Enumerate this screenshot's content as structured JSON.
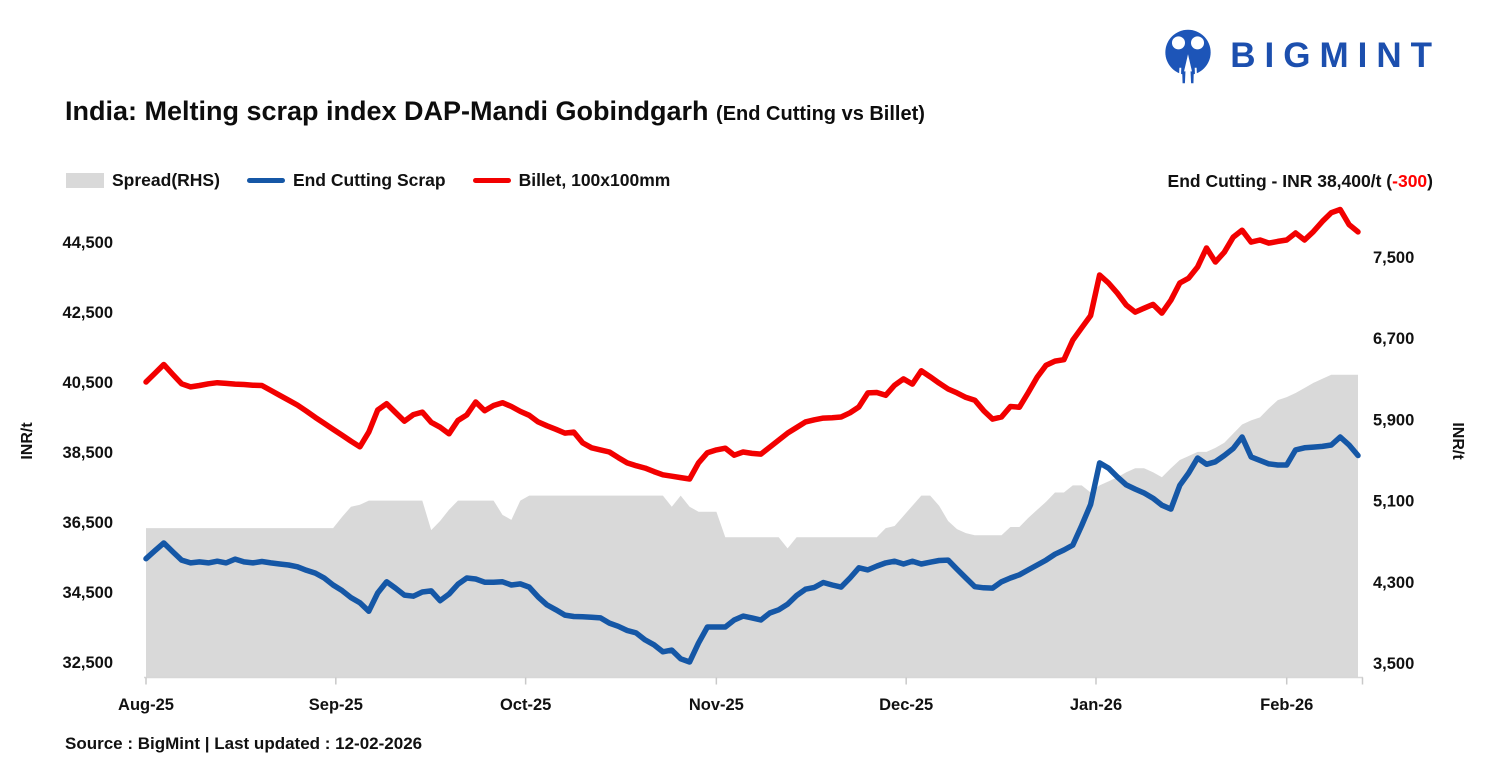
{
  "logo": {
    "text": "BIGMINT",
    "color": "#1c4fae"
  },
  "title": {
    "main": "India: Melting scrap index DAP-Mandi Gobindgarh",
    "sub": "(End Cutting vs Billet)"
  },
  "legend": [
    {
      "label": "Spread(RHS)",
      "type": "area",
      "color": "#d9d9d9"
    },
    {
      "label": "End Cutting Scrap",
      "type": "line",
      "color": "#1557a6"
    },
    {
      "label": "Billet, 100x100mm",
      "type": "line",
      "color": "#f20000"
    }
  ],
  "annotation": {
    "prefix": "End Cutting - INR 38,400/t (",
    "change": "-300",
    "suffix": ")",
    "change_color": "#ff0000"
  },
  "source": "Source : BigMint | Last updated : 12-02-2026",
  "chart_data": {
    "type": "line",
    "title": "India: Melting scrap index DAP-Mandi Gobindgarh (End Cutting vs Billet)",
    "x_tick_labels": [
      "Aug-25",
      "Sep-25",
      "Oct-25",
      "Nov-25",
      "Dec-25",
      "Jan-26",
      "Feb-26"
    ],
    "x_tick_indices": [
      0,
      21.3,
      42.6,
      64,
      85.3,
      106.6,
      128
    ],
    "left_axis": {
      "label": "INR/t",
      "ticks": [
        44500,
        42500,
        40500,
        38500,
        36500,
        34500,
        32500
      ],
      "range": [
        32070,
        45560
      ]
    },
    "right_axis": {
      "label": "INR/t",
      "ticks": [
        7500,
        6700,
        5900,
        5100,
        4300,
        3500
      ],
      "range": [
        3363,
        8012
      ]
    },
    "legend_position": "top-left",
    "grid": false,
    "series": [
      {
        "name": "Spread(RHS)",
        "axis": "right",
        "type": "area",
        "color": "#d9d9d9",
        "values": [
          4830,
          4830,
          4830,
          4830,
          4830,
          4830,
          4830,
          4830,
          4830,
          4830,
          4830,
          4830,
          4830,
          4830,
          4830,
          4830,
          4830,
          4830,
          4830,
          4830,
          4830,
          4830,
          4940,
          5040,
          5060,
          5100,
          5100,
          5100,
          5100,
          5100,
          5100,
          5100,
          4810,
          4900,
          5010,
          5100,
          5100,
          5100,
          5100,
          5100,
          4960,
          4910,
          5100,
          5150,
          5150,
          5150,
          5150,
          5150,
          5150,
          5150,
          5150,
          5150,
          5150,
          5150,
          5150,
          5150,
          5150,
          5150,
          5150,
          5040,
          5150,
          5040,
          4990,
          4990,
          4990,
          4740,
          4740,
          4740,
          4740,
          4740,
          4740,
          4740,
          4630,
          4740,
          4740,
          4740,
          4740,
          4740,
          4740,
          4740,
          4740,
          4740,
          4740,
          4830,
          4850,
          4950,
          5050,
          5150,
          5150,
          5050,
          4900,
          4820,
          4780,
          4760,
          4760,
          4760,
          4760,
          4840,
          4840,
          4930,
          5010,
          5090,
          5180,
          5180,
          5250,
          5250,
          5180,
          5250,
          5290,
          5330,
          5380,
          5420,
          5420,
          5380,
          5330,
          5420,
          5500,
          5540,
          5580,
          5580,
          5620,
          5670,
          5760,
          5850,
          5890,
          5920,
          6010,
          6090,
          6120,
          6160,
          6210,
          6260,
          6300,
          6340,
          6340,
          6340,
          6340
        ]
      },
      {
        "name": "End Cutting Scrap",
        "axis": "left",
        "type": "line",
        "color": "#1557a6",
        "values": [
          35450,
          35680,
          35900,
          35650,
          35410,
          35330,
          35360,
          35330,
          35380,
          35330,
          35440,
          35360,
          35330,
          35370,
          35330,
          35300,
          35270,
          35220,
          35120,
          35040,
          34900,
          34700,
          34540,
          34340,
          34190,
          33950,
          34470,
          34790,
          34610,
          34410,
          34380,
          34500,
          34530,
          34250,
          34440,
          34720,
          34900,
          34870,
          34780,
          34780,
          34790,
          34700,
          34730,
          34640,
          34360,
          34130,
          33990,
          33840,
          33800,
          33790,
          33780,
          33760,
          33610,
          33520,
          33400,
          33330,
          33130,
          32990,
          32790,
          32840,
          32590,
          32500,
          33040,
          33500,
          33500,
          33500,
          33700,
          33810,
          33760,
          33700,
          33900,
          33990,
          34150,
          34400,
          34580,
          34630,
          34770,
          34700,
          34640,
          34900,
          35190,
          35130,
          35240,
          35330,
          35380,
          35300,
          35380,
          35300,
          35350,
          35400,
          35410,
          35150,
          34900,
          34650,
          34620,
          34610,
          34790,
          34900,
          34990,
          35130,
          35270,
          35410,
          35580,
          35700,
          35840,
          36400,
          37000,
          38190,
          38040,
          37790,
          37560,
          37440,
          37330,
          37180,
          36980,
          36870,
          37550,
          37900,
          38330,
          38150,
          38220,
          38400,
          38600,
          38930,
          38360,
          38260,
          38160,
          38130,
          38130,
          38560,
          38620,
          38640,
          38660,
          38700,
          38930,
          38700,
          38400
        ]
      },
      {
        "name": "Billet, 100x100mm",
        "axis": "left",
        "type": "line",
        "color": "#f20000",
        "values": [
          40500,
          40750,
          41000,
          40720,
          40450,
          40360,
          40400,
          40450,
          40480,
          40460,
          40440,
          40430,
          40410,
          40400,
          40260,
          40120,
          39980,
          39840,
          39670,
          39490,
          39320,
          39150,
          38980,
          38810,
          38650,
          39070,
          39700,
          39880,
          39630,
          39380,
          39570,
          39640,
          39350,
          39210,
          39020,
          39400,
          39560,
          39930,
          39680,
          39830,
          39910,
          39800,
          39660,
          39550,
          39360,
          39250,
          39150,
          39040,
          39070,
          38760,
          38620,
          38560,
          38500,
          38340,
          38190,
          38110,
          38040,
          37940,
          37850,
          37810,
          37770,
          37730,
          38190,
          38480,
          38560,
          38610,
          38410,
          38500,
          38460,
          38440,
          38640,
          38840,
          39040,
          39200,
          39360,
          39420,
          39470,
          39480,
          39500,
          39620,
          39790,
          40190,
          40200,
          40120,
          40410,
          40590,
          40440,
          40820,
          40650,
          40470,
          40300,
          40190,
          40060,
          39980,
          39680,
          39440,
          39500,
          39800,
          39780,
          40200,
          40640,
          40980,
          41100,
          41140,
          41700,
          42050,
          42400,
          43560,
          43330,
          43040,
          42700,
          42500,
          42610,
          42720,
          42470,
          42840,
          43330,
          43470,
          43790,
          44330,
          43930,
          44210,
          44640,
          44840,
          44500,
          44560,
          44470,
          44520,
          44560,
          44760,
          44560,
          44800,
          45090,
          45340,
          45430,
          45000,
          44790
        ]
      }
    ]
  }
}
